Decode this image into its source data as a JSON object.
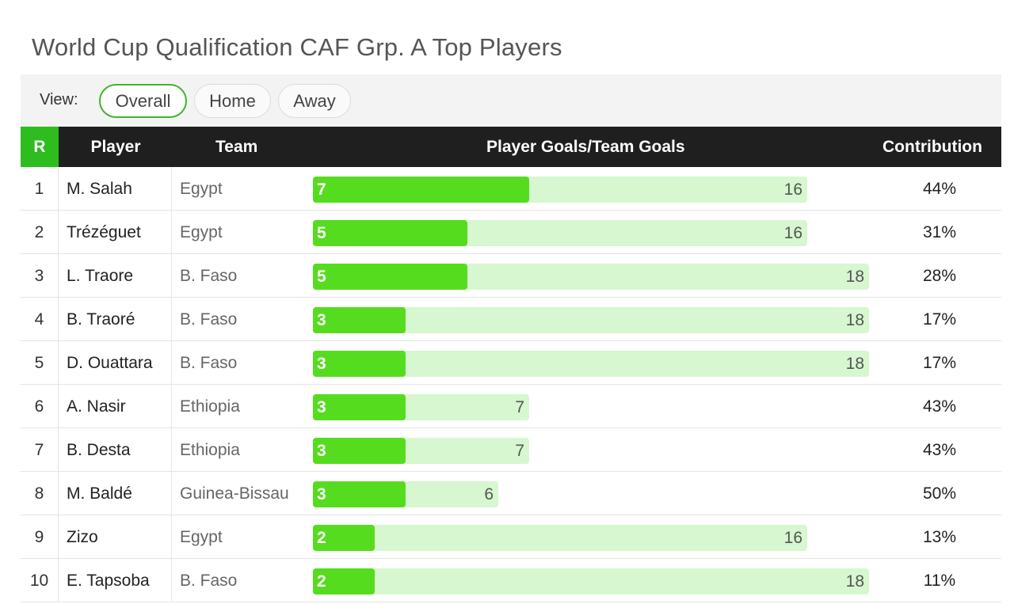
{
  "title": "World Cup Qualification CAF Grp. A Top Players",
  "view": {
    "label": "View:",
    "options": [
      "Overall",
      "Home",
      "Away"
    ],
    "selected": "Overall"
  },
  "colors": {
    "accent": "#2dbd1f",
    "bar_fill": "#56dc1e",
    "bar_track": "#d6f7cf",
    "header_bg": "#1f1f1f"
  },
  "chart_data": {
    "type": "bar",
    "title": "World Cup Qualification CAF Grp. A Top Players",
    "columns": [
      "R",
      "Player",
      "Team",
      "Player Goals/Team Goals",
      "Contribution"
    ],
    "rows": [
      {
        "rank": "1",
        "player": "M. Salah",
        "team": "Egypt",
        "player_goals": 7,
        "team_goals": 16,
        "contribution": "44%"
      },
      {
        "rank": "2",
        "player": "Trézéguet",
        "team": "Egypt",
        "player_goals": 5,
        "team_goals": 16,
        "contribution": "31%"
      },
      {
        "rank": "3",
        "player": "L. Traore",
        "team": "B. Faso",
        "player_goals": 5,
        "team_goals": 18,
        "contribution": "28%"
      },
      {
        "rank": "4",
        "player": "B. Traoré",
        "team": "B. Faso",
        "player_goals": 3,
        "team_goals": 18,
        "contribution": "17%"
      },
      {
        "rank": "5",
        "player": "D. Ouattara",
        "team": "B. Faso",
        "player_goals": 3,
        "team_goals": 18,
        "contribution": "17%"
      },
      {
        "rank": "6",
        "player": "A. Nasir",
        "team": "Ethiopia",
        "player_goals": 3,
        "team_goals": 7,
        "contribution": "43%"
      },
      {
        "rank": "7",
        "player": "B. Desta",
        "team": "Ethiopia",
        "player_goals": 3,
        "team_goals": 7,
        "contribution": "43%"
      },
      {
        "rank": "8",
        "player": "M. Baldé",
        "team": "Guinea-Bissau",
        "player_goals": 3,
        "team_goals": 6,
        "contribution": "50%"
      },
      {
        "rank": "9",
        "player": "Zizo",
        "team": "Egypt",
        "player_goals": 2,
        "team_goals": 16,
        "contribution": "13%"
      },
      {
        "rank": "10",
        "player": "E. Tapsoba",
        "team": "B. Faso",
        "player_goals": 2,
        "team_goals": 18,
        "contribution": "11%"
      }
    ],
    "xlim": [
      0,
      18
    ]
  }
}
